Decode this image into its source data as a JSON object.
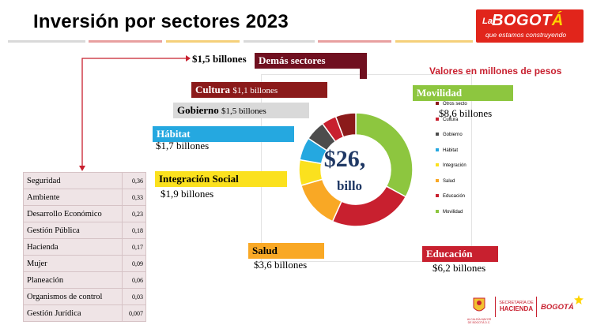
{
  "header": {
    "title": "Inversión por sectores 2023",
    "logo": {
      "la": "La",
      "bog_main": "BOGOT",
      "bog_accent": "Á",
      "tagline": "que estamos construyendo"
    }
  },
  "units_label": "Valores en millones de pesos",
  "colors": {
    "movilidad": "#8dc63f",
    "educacion": "#c8202f",
    "salud": "#f9a825",
    "integracion": "#fbe11e",
    "habitat": "#25a8e0",
    "gobierno": "#4d4d4d",
    "cultura": "#8b1a1a",
    "demas": "#701020",
    "gobierno_bar": "#d9d9d9"
  },
  "sectors": {
    "demas": {
      "label": "Demás sectores",
      "value": "$1,5 billones"
    },
    "cultura": {
      "label": "Cultura",
      "value": "$1,1 billones"
    },
    "gobierno": {
      "label": "Gobierno",
      "value": "$1,5 billones"
    },
    "habitat": {
      "label": "Hábitat",
      "value": "$1,7 billones"
    },
    "integracion": {
      "label": "Integración Social",
      "value": "$1,9 billones"
    },
    "salud": {
      "label": "Salud",
      "value": "$3,6 billones"
    },
    "educacion": {
      "label": "Educación",
      "value": "$6,2 billones"
    },
    "movilidad": {
      "label": "Movilidad",
      "value": "$8,6 billones"
    }
  },
  "others_table": [
    {
      "name": "Seguridad",
      "value": "0,36"
    },
    {
      "name": "Ambiente",
      "value": "0,33"
    },
    {
      "name": "Desarrollo Económico",
      "value": "0,23"
    },
    {
      "name": "Gestión Pública",
      "value": "0,18"
    },
    {
      "name": "Hacienda",
      "value": "0,17"
    },
    {
      "name": "Mujer",
      "value": "0,09"
    },
    {
      "name": "Planeación",
      "value": "0,06"
    },
    {
      "name": "Organismos de control",
      "value": "0,03"
    },
    {
      "name": "Gestión Jurídica",
      "value": "0,007"
    }
  ],
  "chart_data": {
    "type": "pie",
    "center_label_value": "$26,",
    "center_label_unit": "billo",
    "slices": [
      {
        "label": "Movilidad",
        "value": 8.6,
        "color": "#8dc63f"
      },
      {
        "label": "Educación",
        "value": 6.2,
        "color": "#c8202f"
      },
      {
        "label": "Salud",
        "value": 3.6,
        "color": "#f9a825"
      },
      {
        "label": "Integración",
        "value": 1.9,
        "color": "#fbe11e"
      },
      {
        "label": "Hábitat",
        "value": 1.7,
        "color": "#25a8e0"
      },
      {
        "label": "Gobierno",
        "value": 1.5,
        "color": "#4d4d4d"
      },
      {
        "label": "Cultura",
        "value": 1.1,
        "color": "#c8202f"
      },
      {
        "label": "Otros secto",
        "value": 1.5,
        "color": "#8b1a1a"
      }
    ],
    "legend": [
      {
        "label": "Otros secto",
        "color": "#8b1a1a"
      },
      {
        "label": "Cultura",
        "color": "#c8202f"
      },
      {
        "label": "Gobierno",
        "color": "#4d4d4d"
      },
      {
        "label": "Hábitat",
        "color": "#25a8e0"
      },
      {
        "label": "Integración",
        "color": "#fbe11e"
      },
      {
        "label": "Salud",
        "color": "#f9a825"
      },
      {
        "label": "Educación",
        "color": "#c8202f"
      },
      {
        "label": "Movilidad",
        "color": "#8dc63f"
      }
    ]
  },
  "footer": {
    "alcaldia": "ALCALDÍA MAYOR DE BOGOTÁ D.C.",
    "secretaria_1": "SECRETARÍA DE",
    "secretaria_2": "HACIENDA",
    "bogota": "BOGOTÁ"
  }
}
